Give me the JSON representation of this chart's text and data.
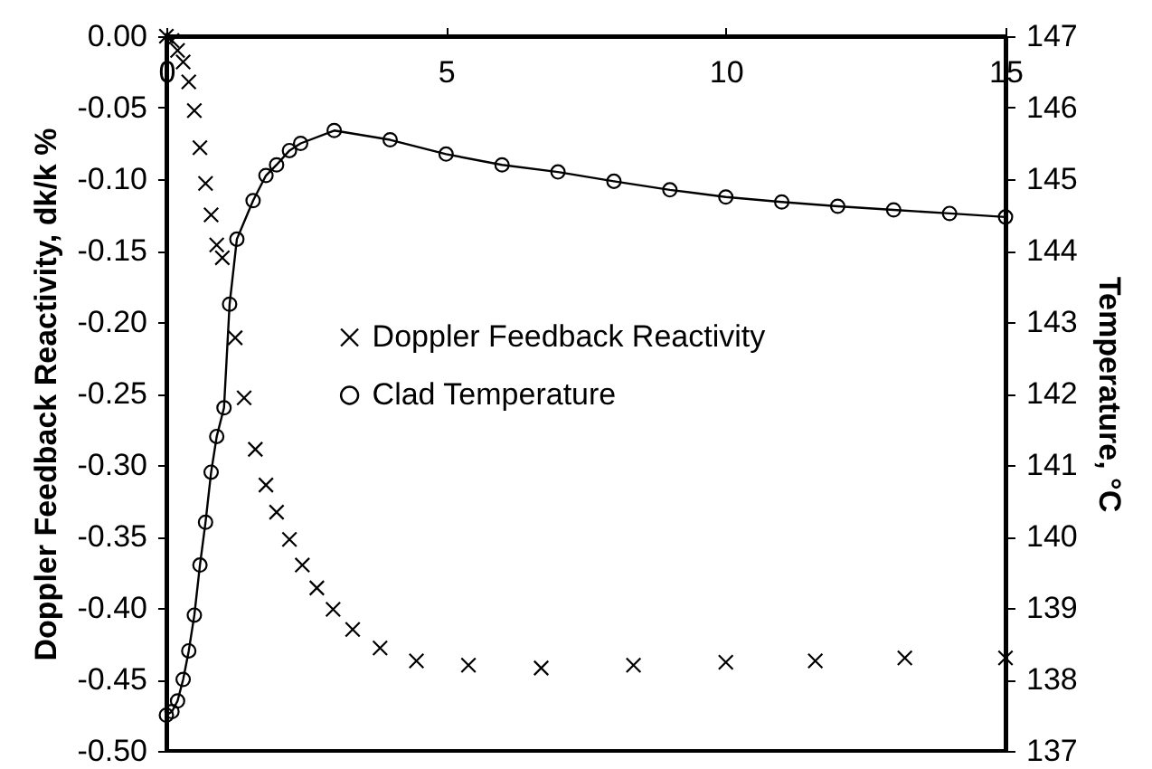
{
  "chart_data": {
    "type": "scatter",
    "ylabel": "Doppler Feedback Reactivity, dk/k %",
    "y2label": "Temperature, °C",
    "xlim": [
      0,
      15
    ],
    "xticks": [
      0,
      5,
      10,
      15
    ],
    "ylim": [
      -0.5,
      0
    ],
    "yticks": [
      {
        "value": -0.5,
        "label": "-0.50"
      },
      {
        "value": -0.45,
        "label": "-0.45"
      },
      {
        "value": -0.4,
        "label": "-0.40"
      },
      {
        "value": -0.35,
        "label": "-0.35"
      },
      {
        "value": -0.3,
        "label": "-0.30"
      },
      {
        "value": -0.25,
        "label": "-0.25"
      },
      {
        "value": -0.2,
        "label": "-0.20"
      },
      {
        "value": -0.15,
        "label": "-0.15"
      },
      {
        "value": -0.1,
        "label": "-0.10"
      },
      {
        "value": -0.05,
        "label": "-0.05"
      },
      {
        "value": 0,
        "label": "0.00"
      }
    ],
    "y2lim": [
      137,
      147
    ],
    "y2ticks": [
      137,
      138,
      139,
      140,
      141,
      142,
      143,
      144,
      145,
      146,
      147
    ],
    "legend": "left",
    "grid": false,
    "series": [
      {
        "name": "Doppler Feedback Reactivity",
        "marker": "cross",
        "color": "#000000",
        "x": [
          0,
          0.1,
          0.2,
          0.3,
          0.4,
          0.5,
          0.6,
          0.7,
          0.8,
          0.9,
          1.0,
          1.23,
          1.39,
          1.59,
          1.78,
          1.97,
          2.2,
          2.43,
          2.69,
          2.98,
          3.33,
          3.82,
          4.47,
          5.4,
          6.7,
          8.35,
          10,
          11.6,
          13.2,
          15
        ],
        "values": [
          0,
          -0.003,
          -0.01,
          -0.018,
          -0.032,
          -0.052,
          -0.078,
          -0.103,
          -0.125,
          -0.146,
          -0.155,
          -0.211,
          -0.253,
          -0.289,
          -0.314,
          -0.333,
          -0.352,
          -0.37,
          -0.386,
          -0.401,
          -0.415,
          -0.428,
          -0.437,
          -0.44,
          -0.442,
          -0.44,
          -0.438,
          -0.437,
          -0.435,
          -0.435
        ]
      },
      {
        "name": "Clad Temperature",
        "type": "line",
        "marker": "circle",
        "axis": "y2",
        "color": "#000000",
        "x": [
          0,
          0.1,
          0.2,
          0.3,
          0.4,
          0.5,
          0.6,
          0.7,
          0.8,
          0.9,
          1.03,
          1.13,
          1.26,
          1.55,
          1.78,
          1.97,
          2.2,
          2.4,
          3.0,
          4,
          5,
          6,
          7,
          8,
          9,
          10,
          11,
          12,
          13,
          14,
          15
        ],
        "values": [
          137.5,
          137.55,
          137.7,
          138.0,
          138.4,
          138.9,
          139.6,
          140.2,
          140.9,
          141.4,
          141.8,
          143.25,
          144.16,
          144.7,
          145.05,
          145.2,
          145.4,
          145.5,
          145.68,
          145.55,
          145.35,
          145.2,
          145.1,
          144.97,
          144.85,
          144.75,
          144.68,
          144.62,
          144.57,
          144.52,
          144.47
        ]
      }
    ]
  }
}
